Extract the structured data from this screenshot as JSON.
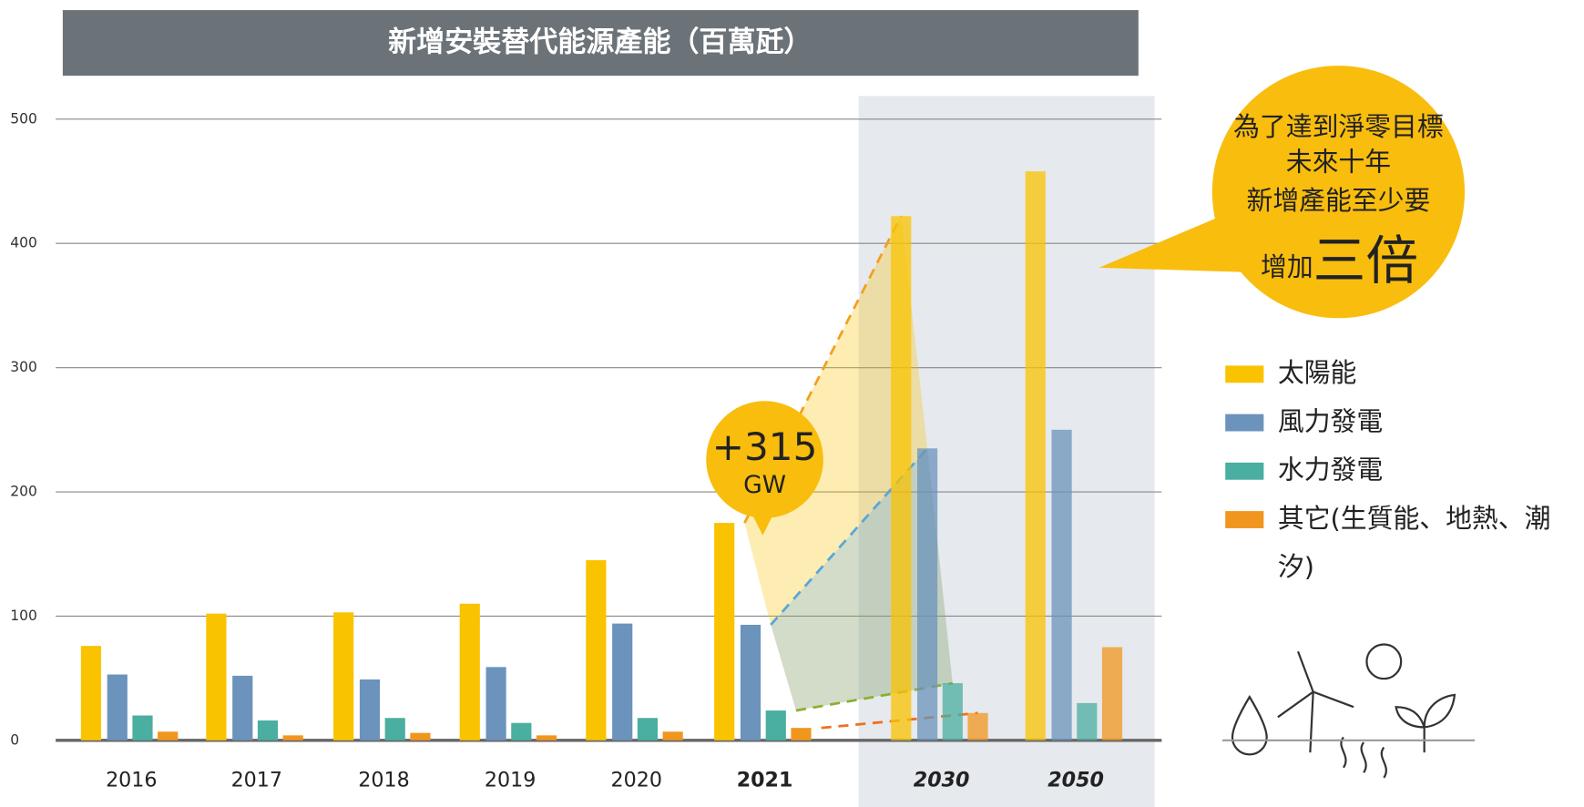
{
  "chart_data": {
    "type": "bar",
    "title": "新增安裝替代能源產能（百萬瓩）",
    "categories": [
      "2016",
      "2017",
      "2018",
      "2019",
      "2020",
      "2021",
      "2030",
      "2050"
    ],
    "series": [
      {
        "name": "太陽能",
        "color": "#f9c300",
        "values": [
          76,
          102,
          103,
          110,
          145,
          175,
          422,
          458
        ]
      },
      {
        "name": "風力發電",
        "color": "#6b93bb",
        "values": [
          53,
          52,
          49,
          59,
          94,
          93,
          235,
          250
        ]
      },
      {
        "name": "水力發電",
        "color": "#4aaea0",
        "values": [
          20,
          16,
          18,
          14,
          18,
          24,
          46,
          30
        ]
      },
      {
        "name": "其它(生質能、地熱、潮汐)",
        "color": "#f0961e",
        "values": [
          7,
          4,
          6,
          4,
          7,
          10,
          22,
          75
        ]
      }
    ],
    "ylim": [
      0,
      500
    ],
    "yticks": [
      0,
      100,
      200,
      300,
      400,
      500
    ],
    "grid": true,
    "annotations": {
      "increase_value": "+315",
      "increase_unit": "GW",
      "callout": [
        "為了達到淨零目標",
        "未來十年",
        "新增產能至少要"
      ],
      "callout_prefix": "增加",
      "callout_emphasis": "三倍"
    }
  }
}
